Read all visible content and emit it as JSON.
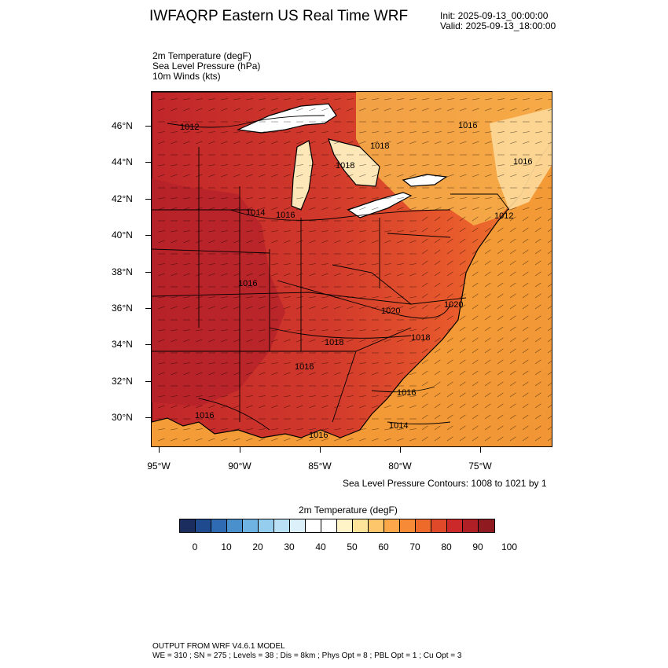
{
  "header": {
    "title": "IWFAQRP Eastern US Real Time WRF",
    "init": "Init: 2025-09-13_00:00:00",
    "valid": "Valid: 2025-09-13_18:00:00"
  },
  "fields": [
    "2m Temperature   (degF)",
    "Sea Level Pressure   (hPa)",
    "10m Winds   (kts)"
  ],
  "map": {
    "lat_labels": [
      "46°N",
      "44°N",
      "42°N",
      "40°N",
      "38°N",
      "36°N",
      "34°N",
      "32°N",
      "30°N"
    ],
    "lon_labels": [
      "95°W",
      "90°W",
      "85°W",
      "80°W",
      "75°W"
    ],
    "contour_labels": [
      "1012",
      "1016",
      "1018",
      "1018",
      "1016",
      "1014",
      "1016",
      "1012",
      "1016",
      "1020",
      "1020",
      "1018",
      "1018",
      "1016",
      "1016",
      "1014",
      "1016",
      "1016"
    ],
    "colors": {
      "land_hot": "#c0262a",
      "land_warm": "#e0492c",
      "land_mid": "#f07c2e",
      "ocean": "#f5a23a",
      "lake": "#ffffff",
      "cool": "#fdd99a"
    }
  },
  "contour_note": "Sea Level Pressure Contours: 1008 to 1021 by 1",
  "colorbar": {
    "title": "2m Temperature  (degF)",
    "colors": [
      "#1b2c5e",
      "#1f4a8e",
      "#2f6bb3",
      "#4a90cc",
      "#6eb3e2",
      "#95cdef",
      "#b9e0f5",
      "#dcf0fa",
      "#ffffff",
      "#ffffff",
      "#fff3c8",
      "#fee39a",
      "#fdc66a",
      "#fca74a",
      "#f78a36",
      "#ee6a2b",
      "#e04a2a",
      "#cc2a2a",
      "#b01f26",
      "#8f1a1f"
    ],
    "ticks": [
      "0",
      "10",
      "20",
      "30",
      "40",
      "50",
      "60",
      "70",
      "80",
      "90",
      "100"
    ]
  },
  "footer": {
    "line1": "OUTPUT FROM WRF V4.6.1 MODEL",
    "line2": "WE = 310 ; SN = 275 ; Levels = 38 ; Dis = 8km ; Phys Opt = 8 ; PBL Opt = 1 ; Cu Opt = 3"
  }
}
